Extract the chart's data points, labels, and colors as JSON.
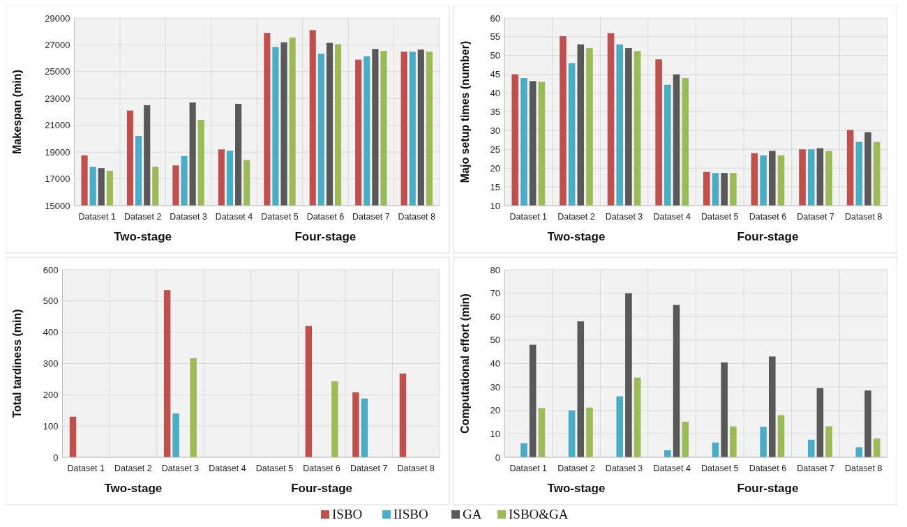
{
  "chart_data": [
    {
      "type": "bar",
      "ylabel": "Makespan (min)",
      "categories": [
        "Dataset 1",
        "Dataset 2",
        "Dataset 3",
        "Dataset 4",
        "Dataset 5",
        "Dataset 6",
        "Dataset 7",
        "Dataset 8"
      ],
      "ylim": [
        15000,
        29000
      ],
      "yticks": [
        15000,
        17000,
        19000,
        21000,
        23000,
        25000,
        27000,
        29000
      ],
      "grid": true,
      "legend": "bottom",
      "annotations": [
        "Two-stage",
        "Four-stage"
      ],
      "series": [
        {
          "name": "ISBO",
          "color": "#c0504d",
          "values": [
            18750,
            22100,
            18000,
            19200,
            27900,
            28100,
            25900,
            26500
          ]
        },
        {
          "name": "IISBO",
          "color": "#4bacc6",
          "values": [
            17900,
            20200,
            18700,
            19100,
            26850,
            26350,
            26150,
            26500
          ]
        },
        {
          "name": "GA",
          "color": "#595959",
          "values": [
            17800,
            22500,
            22700,
            22600,
            27200,
            27150,
            26700,
            26650
          ]
        },
        {
          "name": "ISBO&GA",
          "color": "#9bbb59",
          "values": [
            17600,
            17900,
            21400,
            18400,
            27550,
            27050,
            26550,
            26500
          ]
        }
      ]
    },
    {
      "type": "bar",
      "ylabel": "Majo setup times (number)",
      "categories": [
        "Dataset 1",
        "Dataset 2",
        "Dataset 3",
        "Dataset 4",
        "Dataset 5",
        "Dataset 6",
        "Dataset 7",
        "Dataset 8"
      ],
      "ylim": [
        10,
        60
      ],
      "yticks": [
        10,
        15,
        20,
        25,
        30,
        35,
        40,
        45,
        50,
        55,
        60
      ],
      "grid": true,
      "annotations": [
        "Two-stage",
        "Four-stage"
      ],
      "series": [
        {
          "color": "#c0504d",
          "values": [
            45,
            55.2,
            56,
            49,
            19,
            24,
            25,
            30.2
          ]
        },
        {
          "color": "#4bacc6",
          "values": [
            44,
            48,
            53,
            42.2,
            18.7,
            23.4,
            25,
            27
          ]
        },
        {
          "color": "#595959",
          "values": [
            43.2,
            53,
            52,
            45,
            18.7,
            24.6,
            25.3,
            29.6
          ]
        },
        {
          "color": "#9bbb59",
          "values": [
            43,
            52,
            51.2,
            44,
            18.7,
            23.4,
            24.6,
            27
          ]
        }
      ]
    },
    {
      "type": "bar",
      "ylabel": "Total tardiness (min)",
      "categories": [
        "Dataset 1",
        "Dataset 2",
        "Dataset 3",
        "Dataset 4",
        "Dataset 5",
        "Dataset 6",
        "Dataset 7",
        "Dataset 8"
      ],
      "ylim": [
        0,
        600
      ],
      "yticks": [
        0,
        100,
        200,
        300,
        400,
        500,
        600
      ],
      "grid": true,
      "annotations": [
        "Two-stage",
        "Four-stage"
      ],
      "series": [
        {
          "color": "#c0504d",
          "values": [
            130,
            0,
            535,
            0,
            0,
            420,
            208,
            268
          ]
        },
        {
          "color": "#4bacc6",
          "values": [
            0,
            0,
            140,
            0,
            0,
            0,
            188,
            0
          ]
        },
        {
          "color": "#595959",
          "values": [
            0,
            0,
            0,
            0,
            0,
            0,
            0,
            0
          ]
        },
        {
          "color": "#9bbb59",
          "values": [
            0,
            0,
            317,
            0,
            0,
            243,
            0,
            0
          ]
        }
      ]
    },
    {
      "type": "bar",
      "ylabel": "Computational effort (min)",
      "categories": [
        "Dataset 1",
        "Dataset 2",
        "Dataset 3",
        "Dataset 4",
        "Dataset 5",
        "Dataset 6",
        "Dataset 7",
        "Dataset 8"
      ],
      "ylim": [
        0,
        80
      ],
      "yticks": [
        0,
        10,
        20,
        30,
        40,
        50,
        60,
        70,
        80
      ],
      "grid": true,
      "annotations": [
        "Two-stage",
        "Four-stage"
      ],
      "series": [
        {
          "color": "#c0504d",
          "values": [
            0,
            0,
            0,
            0,
            0,
            0,
            0,
            0
          ]
        },
        {
          "color": "#4bacc6",
          "values": [
            6,
            20,
            26,
            3,
            6.3,
            13,
            7.5,
            4.3
          ]
        },
        {
          "color": "#595959",
          "values": [
            48,
            58,
            70,
            65,
            40.5,
            43,
            29.5,
            28.5
          ]
        },
        {
          "color": "#9bbb59",
          "values": [
            21,
            21.2,
            34,
            15.2,
            13.2,
            18,
            13.2,
            8
          ]
        }
      ]
    }
  ]
}
